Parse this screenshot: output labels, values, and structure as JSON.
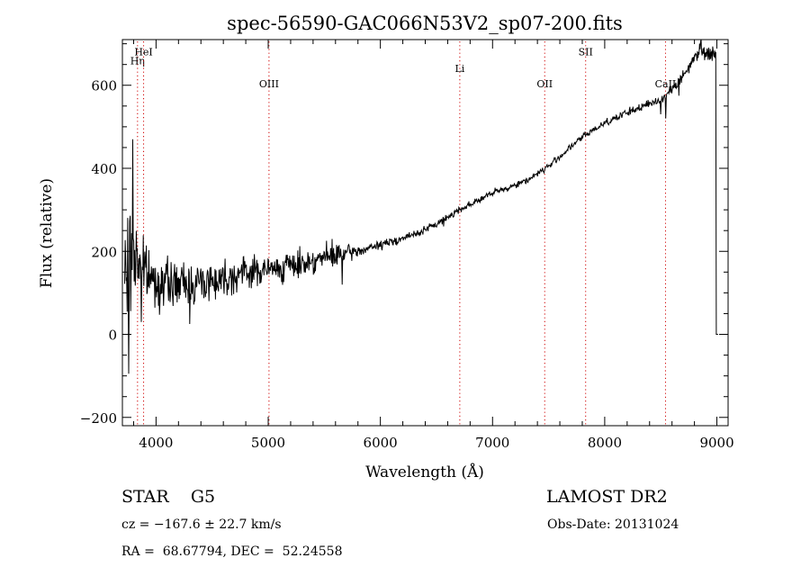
{
  "chart_data": {
    "type": "line",
    "title": "spec-56590-GAC066N53V2_sp07-200.fits",
    "xlabel": "Wavelength (Å)",
    "ylabel": "Flux (relative)",
    "xlim": [
      3700,
      9100
    ],
    "ylim": [
      -220,
      710
    ],
    "xticks": [
      4000,
      5000,
      6000,
      7000,
      8000,
      9000
    ],
    "yticks": [
      -200,
      0,
      200,
      400,
      600
    ],
    "grid": false,
    "series": [
      {
        "color": "#000000",
        "continuum": [
          {
            "x": 3720,
            "y": 130
          },
          {
            "x": 3800,
            "y": 200
          },
          {
            "x": 3900,
            "y": 150
          },
          {
            "x": 4000,
            "y": 125
          },
          {
            "x": 4200,
            "y": 120
          },
          {
            "x": 4500,
            "y": 130
          },
          {
            "x": 4800,
            "y": 150
          },
          {
            "x": 5000,
            "y": 155
          },
          {
            "x": 5200,
            "y": 165
          },
          {
            "x": 5500,
            "y": 185
          },
          {
            "x": 5800,
            "y": 200
          },
          {
            "x": 6000,
            "y": 215
          },
          {
            "x": 6300,
            "y": 240
          },
          {
            "x": 6500,
            "y": 265
          },
          {
            "x": 6700,
            "y": 300
          },
          {
            "x": 7000,
            "y": 340
          },
          {
            "x": 7300,
            "y": 370
          },
          {
            "x": 7500,
            "y": 405
          },
          {
            "x": 7800,
            "y": 475
          },
          {
            "x": 8000,
            "y": 510
          },
          {
            "x": 8300,
            "y": 545
          },
          {
            "x": 8500,
            "y": 565
          },
          {
            "x": 8700,
            "y": 620
          },
          {
            "x": 8850,
            "y": 690
          },
          {
            "x": 8950,
            "y": 670
          },
          {
            "x": 8985,
            "y": 680
          }
        ],
        "noise": [
          {
            "x": 3720,
            "amp": 160
          },
          {
            "x": 3800,
            "amp": 140
          },
          {
            "x": 3900,
            "amp": 80
          },
          {
            "x": 4000,
            "amp": 65
          },
          {
            "x": 4500,
            "amp": 55
          },
          {
            "x": 5000,
            "amp": 40
          },
          {
            "x": 5600,
            "amp": 35
          },
          {
            "x": 5800,
            "amp": 14
          },
          {
            "x": 6500,
            "amp": 10
          },
          {
            "x": 7500,
            "amp": 9
          },
          {
            "x": 8500,
            "amp": 12
          },
          {
            "x": 8985,
            "amp": 25
          }
        ],
        "features": [
          {
            "x": 3758,
            "y": -95
          },
          {
            "x": 3790,
            "y": 470
          },
          {
            "x": 3870,
            "y": 30
          },
          {
            "x": 4300,
            "y": 25
          },
          {
            "x": 5660,
            "y": 120
          },
          {
            "x": 6563,
            "y": 260
          },
          {
            "x": 8500,
            "y": 530
          },
          {
            "x": 8542,
            "y": 520
          },
          {
            "x": 8662,
            "y": 575
          },
          {
            "x": 8860,
            "y": 710
          }
        ],
        "end_drop": [
          {
            "x": 8990,
            "y": 680
          },
          {
            "x": 8995,
            "y": 0
          },
          {
            "x": 9010,
            "y": 0
          }
        ]
      }
    ],
    "lines": [
      {
        "name": "Hη",
        "x": 3835,
        "label_value": 650
      },
      {
        "name": "HeI",
        "x": 3889,
        "label_value": 672
      },
      {
        "name": "OIII",
        "x": 5007,
        "label_value": 595
      },
      {
        "name": "Li",
        "x": 6708,
        "label_value": 632
      },
      {
        "name": "OII",
        "x": 7465,
        "label_value": 595
      },
      {
        "name": "SII",
        "x": 7830,
        "label_value": 672
      },
      {
        "name": "CaII",
        "x": 8542,
        "label_value": 595
      }
    ]
  },
  "footer": {
    "object": "STAR    G5",
    "survey": "LAMOST DR2",
    "cz": "cz = −167.6 ± 22.7 km/s",
    "obs_date": "Obs-Date: 20131024",
    "coords": "RA =  68.67794, DEC =  52.24558"
  }
}
